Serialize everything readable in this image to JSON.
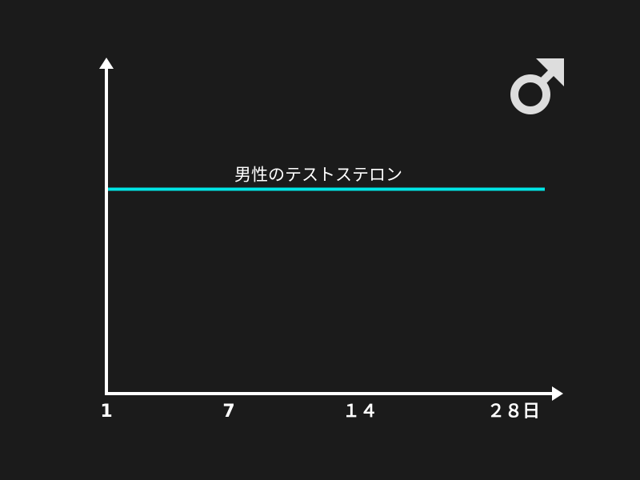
{
  "chart_data": {
    "type": "line",
    "title": "",
    "xlabel": "",
    "ylabel": "",
    "x_ticks": [
      {
        "value": 1,
        "label": "1"
      },
      {
        "value": 7,
        "label": "7"
      },
      {
        "value": 14,
        "label": "１４"
      },
      {
        "value": 28,
        "label": "２８日"
      }
    ],
    "xlim": [
      1,
      28
    ],
    "ylim": [
      0,
      1
    ],
    "grid": false,
    "series": [
      {
        "name": "男性のテストステロン",
        "x": [
          1,
          28
        ],
        "y": [
          0.62,
          0.62
        ],
        "color": "#00e5e5"
      }
    ]
  },
  "icon": {
    "name": "male-symbol-icon",
    "color": "#dddddd"
  },
  "colors": {
    "background": "#1b1b1b",
    "axis": "#ffffff"
  }
}
